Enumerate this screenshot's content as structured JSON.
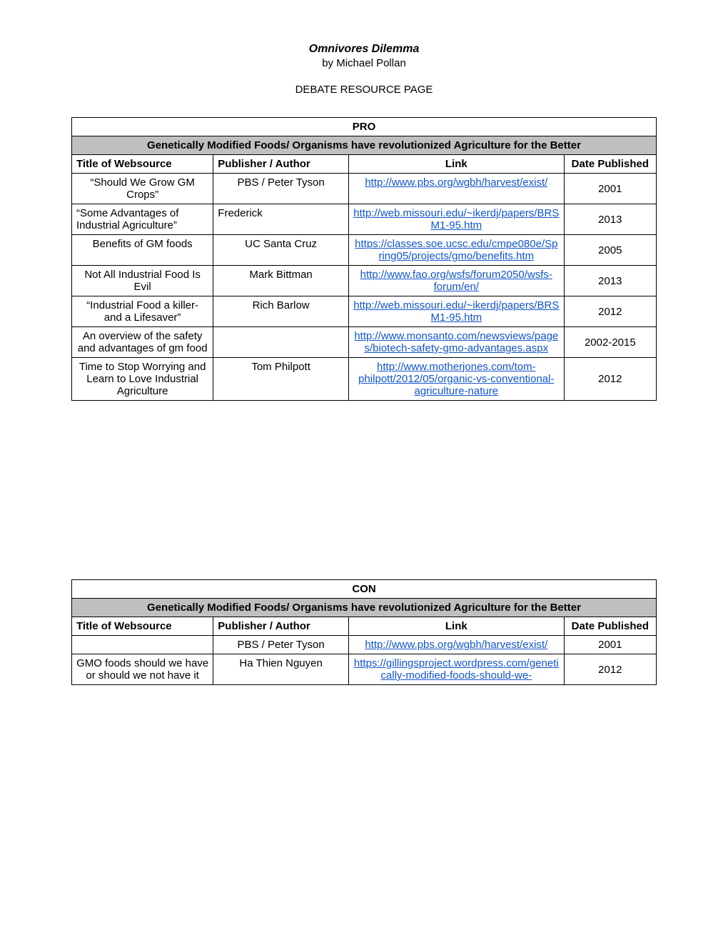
{
  "header": {
    "title": "Omnivores Dilemma",
    "author": "by Michael Pollan",
    "page_label": "DEBATE RESOURCE PAGE"
  },
  "columns": {
    "title": "Title of Websource",
    "author": "Publisher / Author",
    "link": "Link",
    "date": "Date Published"
  },
  "pro": {
    "section": "PRO",
    "subtitle": "Genetically Modified Foods/ Organisms have revolutionized Agriculture for the Better",
    "rows": [
      {
        "title": "“Should We Grow GM Crops”",
        "author": "PBS / Peter Tyson",
        "link": "http://www.pbs.org/wgbh/harvest/exist/",
        "date": "2001"
      },
      {
        "title": "“Some Advantages of Industrial Agriculture”",
        "author": "Frederick",
        "link": "http://web.missouri.edu/~ikerdj/papers/BRSM1-95.htm",
        "date": "2013"
      },
      {
        "title": "Benefits of GM foods",
        "author": "UC Santa Cruz",
        "link": "https://classes.soe.ucsc.edu/cmpe080e/Spring05/projects/gmo/benefits.htm",
        "date": "2005"
      },
      {
        "title": "Not All Industrial Food Is Evil",
        "author": "Mark Bittman",
        "link": "http://www.fao.org/wsfs/forum2050/wsfs-forum/en/",
        "date": "2013"
      },
      {
        "title": "“Industrial Food a killer- and a Lifesaver”",
        "author": "Rich Barlow",
        "link": "http://web.missouri.edu/~ikerdj/papers/BRSM1-95.htm",
        "date": "2012"
      },
      {
        "title": "An overview of the safety and advantages of gm food",
        "author": "",
        "link": "http://www.monsanto.com/newsviews/pages/biotech-safety-gmo-advantages.aspx",
        "date": "2002-2015"
      },
      {
        "title": "Time to Stop Worrying and Learn to Love Industrial Agriculture",
        "author": "Tom Philpott",
        "link": "http://www.motherjones.com/tom-philpott/2012/05/organic-vs-conventional-agriculture-nature",
        "date": "2012"
      }
    ]
  },
  "con": {
    "section": "CON",
    "subtitle": "Genetically Modified Foods/ Organisms have revolutionized Agriculture for the Better",
    "rows": [
      {
        "title": "",
        "author": "PBS / Peter Tyson",
        "link": "http://www.pbs.org/wgbh/harvest/exist/",
        "date": "2001"
      },
      {
        "title": "GMO foods should we have or should we not have it",
        "author": "Ha Thien Nguyen",
        "link": "https://gillingsproject.wordpress.com/genetically-modified-foods-should-we-",
        "date": "2012"
      }
    ]
  }
}
